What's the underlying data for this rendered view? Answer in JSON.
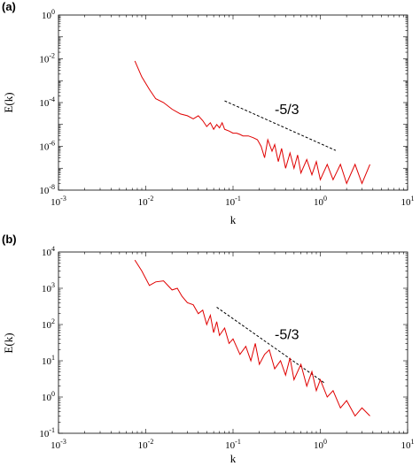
{
  "chart_data": [
    {
      "type": "line",
      "panel_label": "(a)",
      "xlabel": "k",
      "ylabel": "E(k)",
      "xscale": "log",
      "yscale": "log",
      "xlim": [
        0.001,
        10
      ],
      "ylim": [
        1e-08,
        1
      ],
      "xtick_labels": [
        {
          "value": 0.001,
          "base": "10",
          "exp": "-3"
        },
        {
          "value": 0.01,
          "base": "10",
          "exp": "-2"
        },
        {
          "value": 0.1,
          "base": "10",
          "exp": "-1"
        },
        {
          "value": 1,
          "base": "10",
          "exp": "0"
        },
        {
          "value": 10,
          "base": "10",
          "exp": "1"
        }
      ],
      "ytick_labels": [
        {
          "value": 1e-08,
          "base": "10",
          "exp": "-8"
        },
        {
          "value": 1e-06,
          "base": "10",
          "exp": "-6"
        },
        {
          "value": 0.0001,
          "base": "10",
          "exp": "-4"
        },
        {
          "value": 0.01,
          "base": "10",
          "exp": "-2"
        },
        {
          "value": 1,
          "base": "10",
          "exp": "0"
        }
      ],
      "series_color": "#e00000",
      "series": [
        {
          "x": [
            0.0075,
            0.009,
            0.011,
            0.013,
            0.016,
            0.02,
            0.025,
            0.03,
            0.035,
            0.04,
            0.045,
            0.05,
            0.055,
            0.06,
            0.065,
            0.07,
            0.075,
            0.08,
            0.09,
            0.1,
            0.11,
            0.12,
            0.13,
            0.15,
            0.17,
            0.19,
            0.21,
            0.23,
            0.25,
            0.28,
            0.3,
            0.33,
            0.36,
            0.4,
            0.45,
            0.5,
            0.55,
            0.6,
            0.7,
            0.8,
            0.9,
            1.0,
            1.2,
            1.4,
            1.7,
            2.0,
            2.5,
            3.0,
            3.7
          ],
          "y": [
            0.008,
            0.0015,
            0.0004,
            0.00015,
            0.0001,
            5e-05,
            3e-05,
            2.5e-05,
            1.8e-05,
            2.5e-05,
            1.5e-05,
            8e-06,
            1.2e-05,
            6e-06,
            1e-05,
            7e-06,
            1.2e-05,
            6e-06,
            5e-06,
            4e-06,
            4e-06,
            3.5e-06,
            3e-06,
            3e-06,
            2.5e-06,
            2e-06,
            1e-06,
            3e-07,
            2e-06,
            6e-07,
            1.2e-06,
            2e-07,
            8e-07,
            1e-07,
            5e-07,
            1e-07,
            4e-07,
            6e-08,
            2.5e-07,
            5e-08,
            2e-07,
            3e-08,
            1.5e-07,
            3e-08,
            1.5e-07,
            2e-08,
            1.5e-07,
            2e-08,
            1.5e-07
          ]
        }
      ],
      "annotations": [
        {
          "text": "-5/3",
          "x": 0.3,
          "y": 3e-05
        }
      ],
      "reference_line": {
        "x": [
          0.08,
          1.5
        ],
        "y": [
          0.00012,
          6.5e-07
        ]
      }
    },
    {
      "type": "line",
      "panel_label": "(b)",
      "xlabel": "k",
      "ylabel": "E(k)",
      "xscale": "log",
      "yscale": "log",
      "xlim": [
        0.001,
        10
      ],
      "ylim": [
        0.1,
        10000
      ],
      "xtick_labels": [
        {
          "value": 0.001,
          "base": "10",
          "exp": "-3"
        },
        {
          "value": 0.01,
          "base": "10",
          "exp": "-2"
        },
        {
          "value": 0.1,
          "base": "10",
          "exp": "-1"
        },
        {
          "value": 1,
          "base": "10",
          "exp": "0"
        },
        {
          "value": 10,
          "base": "10",
          "exp": "1"
        }
      ],
      "ytick_labels": [
        {
          "value": 0.1,
          "base": "10",
          "exp": "-1"
        },
        {
          "value": 1,
          "base": "10",
          "exp": "0"
        },
        {
          "value": 10,
          "base": "10",
          "exp": "1"
        },
        {
          "value": 100,
          "base": "10",
          "exp": "2"
        },
        {
          "value": 1000,
          "base": "10",
          "exp": "3"
        },
        {
          "value": 10000,
          "base": "10",
          "exp": "4"
        }
      ],
      "series_color": "#e00000",
      "series": [
        {
          "x": [
            0.0075,
            0.009,
            0.011,
            0.013,
            0.016,
            0.02,
            0.023,
            0.026,
            0.03,
            0.035,
            0.04,
            0.045,
            0.05,
            0.055,
            0.06,
            0.065,
            0.07,
            0.08,
            0.09,
            0.1,
            0.12,
            0.14,
            0.16,
            0.18,
            0.2,
            0.23,
            0.26,
            0.3,
            0.35,
            0.4,
            0.45,
            0.5,
            0.6,
            0.7,
            0.8,
            0.9,
            1.0,
            1.2,
            1.4,
            1.7,
            2.0,
            2.5,
            3.0,
            3.7
          ],
          "y": [
            6000,
            3000,
            1200,
            1500,
            1600,
            900,
            1000,
            600,
            400,
            350,
            200,
            250,
            100,
            180,
            60,
            120,
            50,
            80,
            30,
            40,
            15,
            25,
            10,
            30,
            8,
            15,
            20,
            6,
            10,
            4,
            12,
            3,
            8,
            2,
            5,
            1.5,
            3,
            1,
            1.5,
            0.5,
            0.8,
            0.3,
            0.5,
            0.3
          ]
        }
      ],
      "annotations": [
        {
          "text": "-5/3",
          "x": 0.3,
          "y": 40
        }
      ],
      "reference_line": {
        "x": [
          0.065,
          1.1
        ],
        "y": [
          300,
          2.5
        ]
      }
    }
  ]
}
